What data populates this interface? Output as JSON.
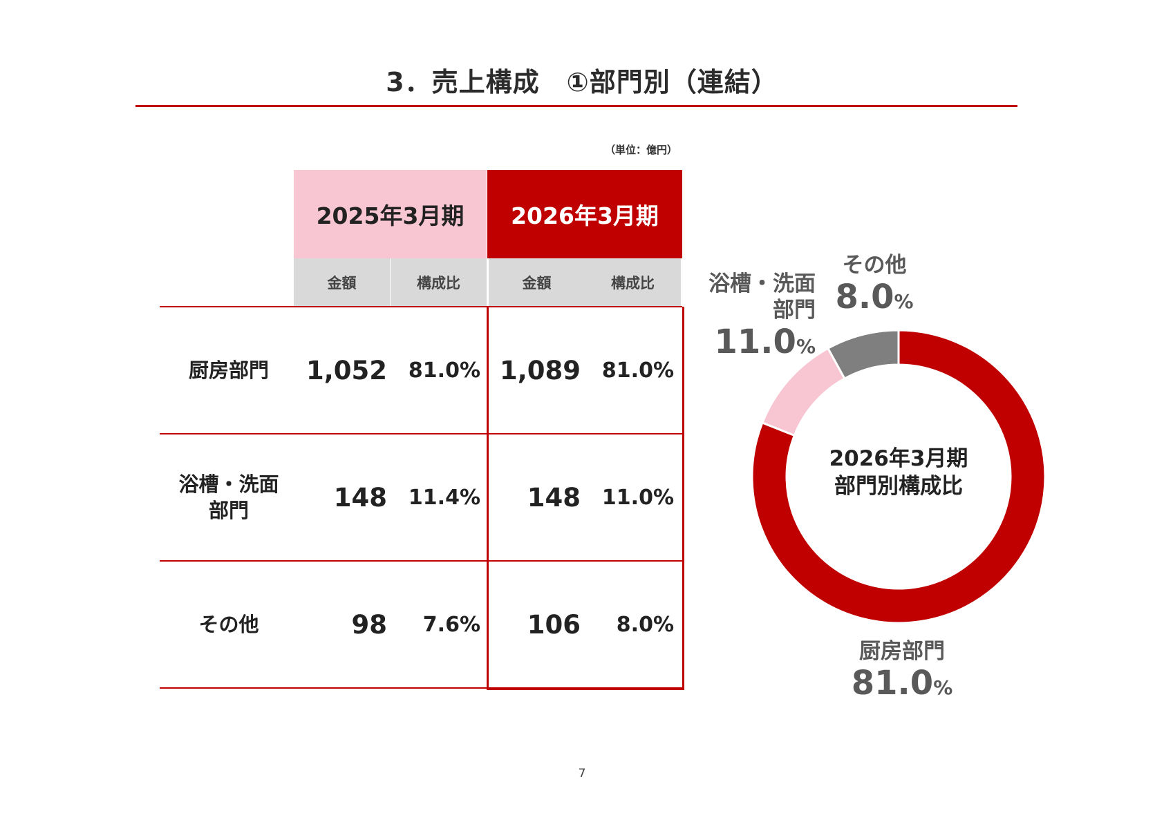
{
  "page": {
    "title": "3．売上構成　①部門別（連結）",
    "unit": "（単位：億円）",
    "page_number": "7"
  },
  "table": {
    "periods": [
      "2025年3月期",
      "2026年3月期"
    ],
    "sub_headers": [
      "金額",
      "構成比",
      "金額",
      "構成比"
    ],
    "rows": [
      {
        "label": "厨房部門",
        "amount_2025": "1,052",
        "ratio_2025": "81.0%",
        "amount_2026": "1,089",
        "ratio_2026": "81.0%"
      },
      {
        "label": "浴槽・洗面\n部門",
        "amount_2025": "148",
        "ratio_2025": "11.4%",
        "amount_2026": "148",
        "ratio_2026": "11.0%"
      },
      {
        "label": "その他",
        "amount_2025": "98",
        "ratio_2025": "7.6%",
        "amount_2026": "106",
        "ratio_2026": "8.0%"
      }
    ]
  },
  "chart_data": {
    "type": "pie",
    "donut": true,
    "center_label": "2026年3月期\n部門別構成比",
    "categories": [
      "厨房部門",
      "浴槽・洗面\n部門",
      "その他"
    ],
    "values": [
      81.0,
      11.0,
      8.0
    ],
    "value_labels": [
      "81.0",
      "11.0",
      "8.0"
    ],
    "unit": "%",
    "colors": [
      "#c00000",
      "#f8c6d3",
      "#7f7f7f"
    ]
  },
  "colors": {
    "accent": "#c00000",
    "accent_light": "#f8c6d3",
    "subheader_bg": "#d9d9d9",
    "gray_segment": "#7f7f7f"
  }
}
